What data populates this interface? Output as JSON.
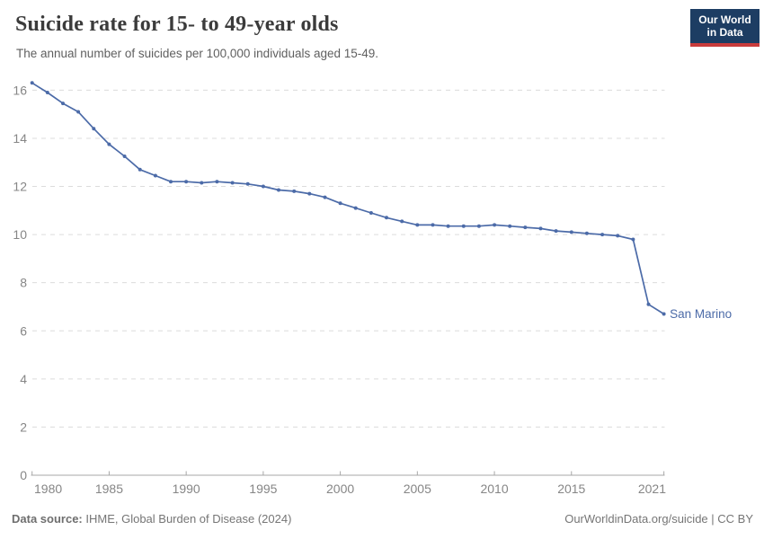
{
  "header": {
    "title": "Suicide rate for 15- to 49-year olds",
    "subtitle": "The annual number of suicides per 100,000 individuals aged 15-49.",
    "logo": {
      "line1": "Our World",
      "line2": "in Data"
    }
  },
  "chart_data": {
    "type": "line",
    "title": "Suicide rate for 15- to 49-year olds",
    "subtitle": "The annual number of suicides per 100,000 individuals aged 15-49.",
    "xlabel": "",
    "ylabel": "",
    "years": [
      1980,
      1981,
      1982,
      1983,
      1984,
      1985,
      1986,
      1987,
      1988,
      1989,
      1990,
      1991,
      1992,
      1993,
      1994,
      1995,
      1996,
      1997,
      1998,
      1999,
      2000,
      2001,
      2002,
      2003,
      2004,
      2005,
      2006,
      2007,
      2008,
      2009,
      2010,
      2011,
      2012,
      2013,
      2014,
      2015,
      2016,
      2017,
      2018,
      2019,
      2020,
      2021
    ],
    "series": [
      {
        "name": "San Marino",
        "color": "#4c6ba8",
        "values": [
          16.3,
          15.9,
          15.45,
          15.1,
          14.4,
          13.75,
          13.25,
          12.7,
          12.45,
          12.2,
          12.2,
          12.15,
          12.2,
          12.15,
          12.1,
          12.0,
          11.85,
          11.8,
          11.7,
          11.55,
          11.3,
          11.1,
          10.9,
          10.7,
          10.55,
          10.4,
          10.4,
          10.35,
          10.35,
          10.35,
          10.4,
          10.35,
          10.3,
          10.25,
          10.15,
          10.1,
          10.05,
          10.0,
          9.95,
          9.8,
          7.1,
          6.7
        ]
      }
    ],
    "x_tick_labels": [
      1980,
      1985,
      1990,
      1995,
      2000,
      2005,
      2010,
      2015,
      2021
    ],
    "y_ticks": [
      0,
      2,
      4,
      6,
      8,
      10,
      12,
      14,
      16
    ],
    "xlim": [
      1980,
      2021
    ],
    "ylim": [
      0,
      16.4
    ],
    "grid": "horizontal-dashed",
    "legend_position": "end-of-line-label",
    "style": {
      "grid_color": "#dcdcdc",
      "axis_line_color": "#a7a7a7",
      "axis_text_color": "#868686"
    }
  },
  "footer": {
    "data_source_label": "Data source:",
    "data_source_value": " IHME, Global Burden of Disease (2024)",
    "link": "OurWorldinData.org/suicide | CC BY"
  }
}
